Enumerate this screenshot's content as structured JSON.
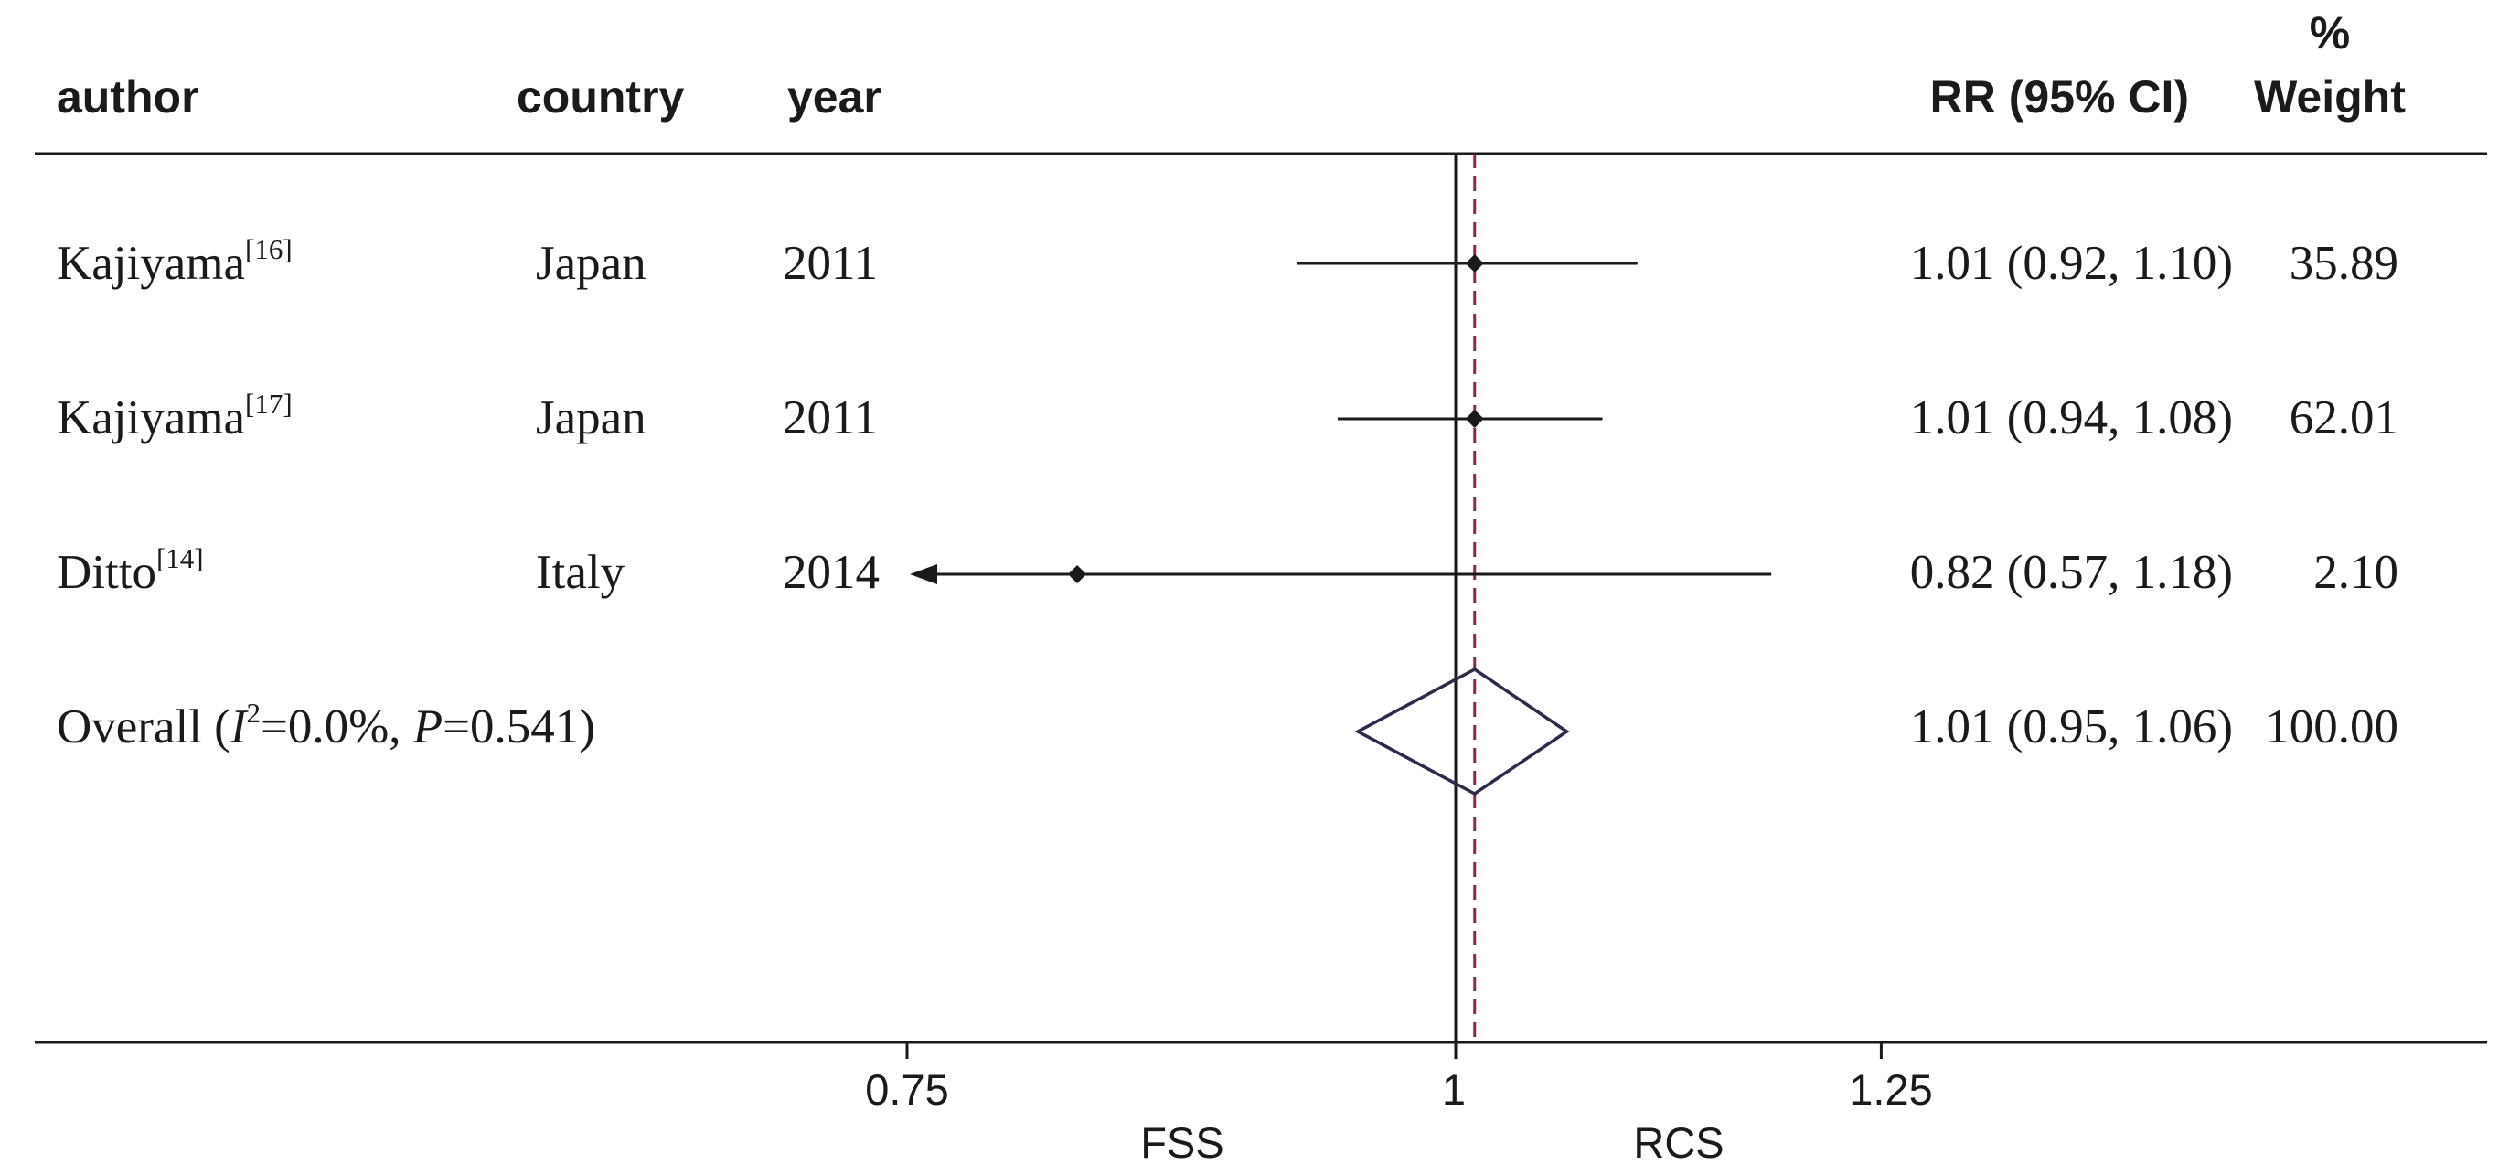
{
  "chart_data": {
    "type": "forest",
    "columns": {
      "author": "author",
      "country": "country",
      "year": "year",
      "estimate": "RR (95% CI)",
      "weight_top": "%",
      "weight_bottom": "Weight"
    },
    "studies": [
      {
        "author": "Kajiyama",
        "ref": "[16]",
        "country": "Japan",
        "year": "2011",
        "rr": 1.01,
        "lower": 0.92,
        "upper": 1.1,
        "ci_text": "1.01 (0.92, 1.10)",
        "weight": "35.89"
      },
      {
        "author": "Kajiyama",
        "ref": "[17]",
        "country": "Japan",
        "year": "2011",
        "rr": 1.01,
        "lower": 0.94,
        "upper": 1.08,
        "ci_text": "1.01 (0.94, 1.08)",
        "weight": "62.01"
      },
      {
        "author": "Ditto",
        "ref": "[14]",
        "country": "Italy",
        "year": "2014",
        "rr": 0.82,
        "lower": 0.57,
        "upper": 1.18,
        "ci_text": "0.82 (0.57, 1.18)",
        "weight": "2.10"
      }
    ],
    "overall": {
      "label_prefix": "Overall  (",
      "i2_symbol": "I",
      "i2_exp": "2",
      "i2_value": "=0.0%, ",
      "p_symbol": "P",
      "p_value": "=0.541)",
      "rr": 1.01,
      "lower": 0.95,
      "upper": 1.06,
      "ci_text": "1.01 (0.95, 1.06)",
      "weight": "100.00"
    },
    "xaxis": {
      "ticks": [
        0.75,
        1,
        1.25
      ],
      "tick_labels": [
        "0.75",
        "1",
        "1.25"
      ],
      "range": [
        0.75,
        1.25
      ],
      "null_value": 1,
      "left_label": "FSS",
      "right_label": "RCS"
    },
    "colors": {
      "ink": "#1a1a1a",
      "diamond": "#2e2b4a",
      "reference_dash": "#8a2a4a"
    }
  }
}
